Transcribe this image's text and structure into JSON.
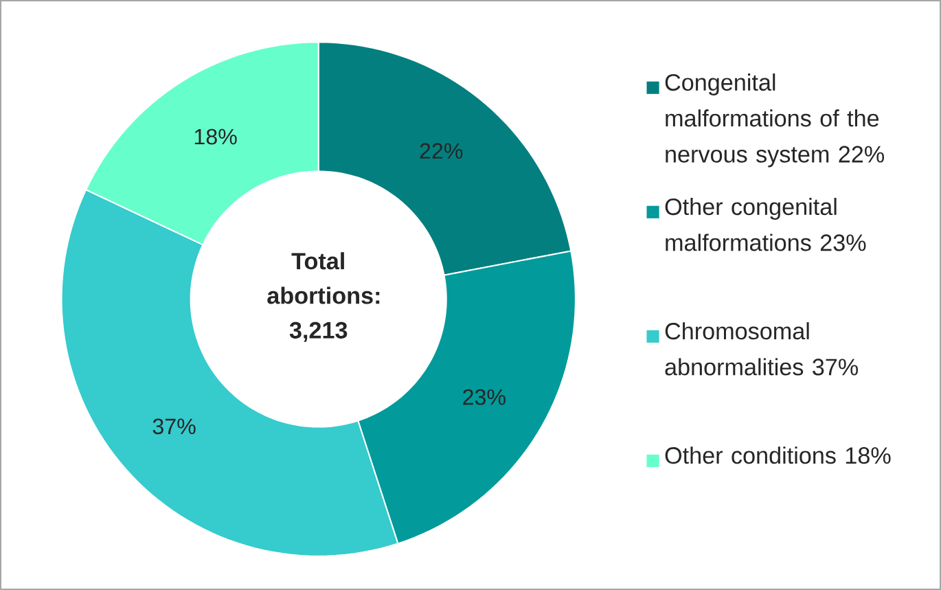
{
  "chart_data": {
    "type": "donut",
    "categories": [
      "Congenital malformations of the nervous system 22%",
      "Other congenital malformations 23%",
      "Chromosomal abnormalities 37%",
      "Other conditions 18%"
    ],
    "values": [
      22,
      23,
      37,
      18
    ],
    "value_labels": [
      "22%",
      "23%",
      "37%",
      "18%"
    ],
    "colors": [
      "#037f7f",
      "#029a9a",
      "#36cbcd",
      "#66ffcc"
    ],
    "annotations": [
      "Total abortions: 3,213"
    ],
    "legend": "right"
  }
}
